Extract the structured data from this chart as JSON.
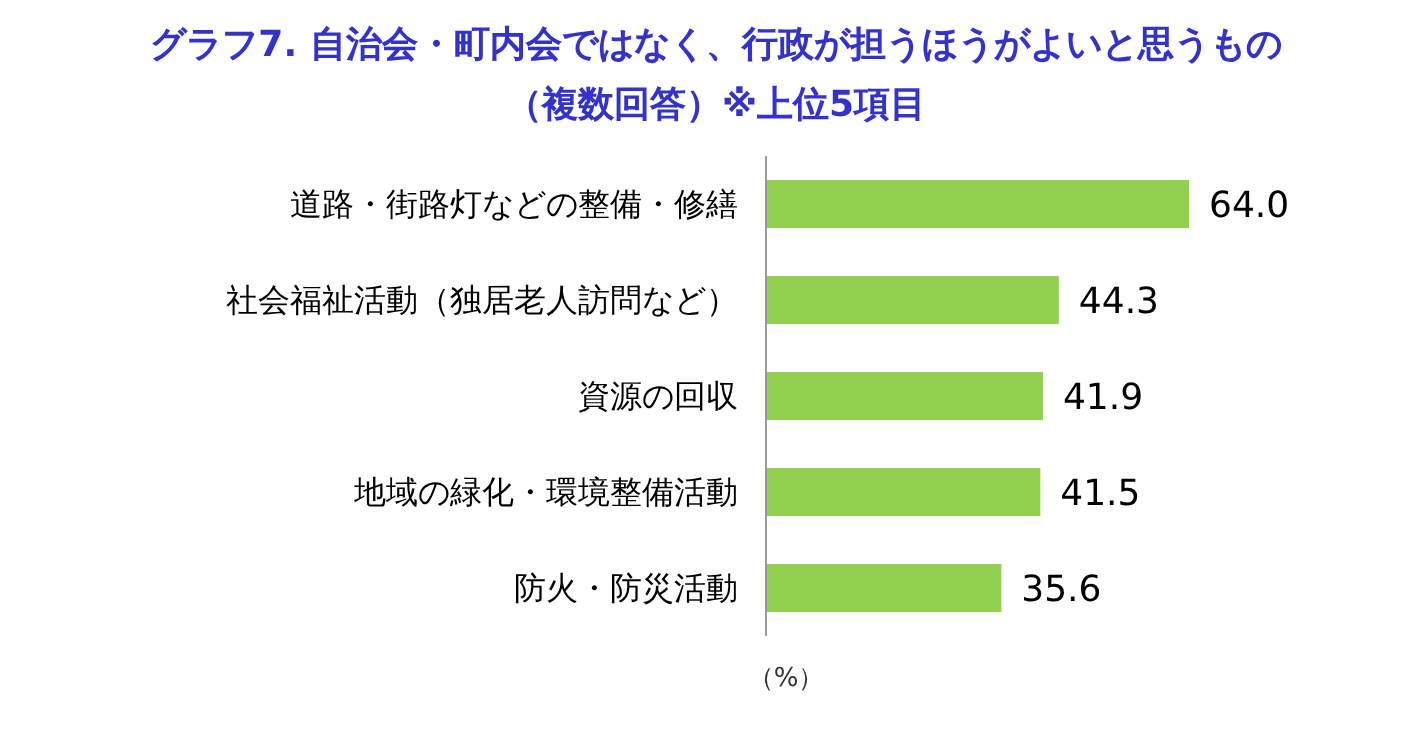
{
  "chart_data": {
    "type": "bar",
    "orientation": "horizontal",
    "title": "グラフ7. 自治会・町内会ではなく、行政が担うほうがよいと思うもの",
    "subtitle": "（複数回答）※上位5項目",
    "xlabel": "（%）",
    "categories": [
      "道路・街路灯などの整備・修繕",
      "社会福祉活動（独居老人訪問など）",
      "資源の回収",
      "地域の緑化・環境整備活動",
      "防火・防災活動"
    ],
    "values": [
      64.0,
      44.3,
      41.9,
      41.5,
      35.6
    ],
    "value_labels": [
      "64.0",
      "44.3",
      "41.9",
      "41.5",
      "35.6"
    ],
    "color": "#92d050"
  }
}
